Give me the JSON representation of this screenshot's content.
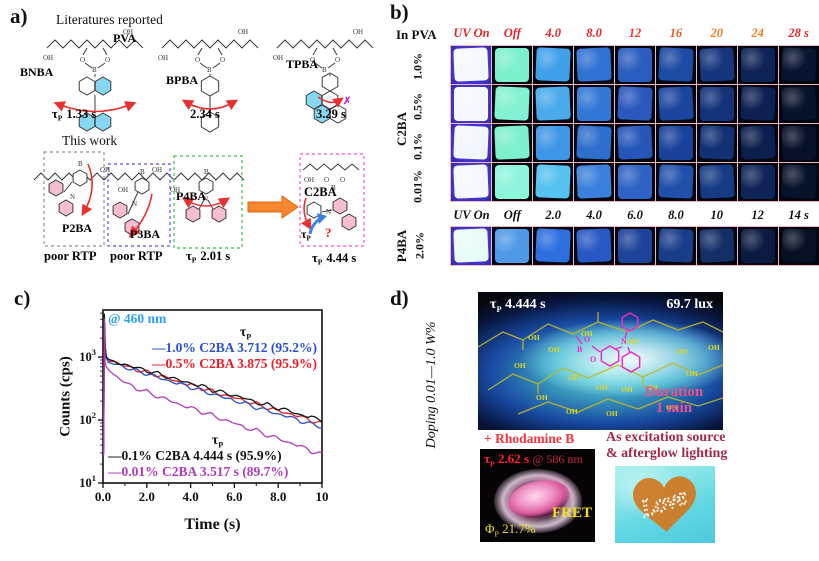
{
  "sym": {
    "tau": "τ",
    "P": "P",
    "phi": "Φ",
    "O": "O",
    "B": "B",
    "N": "N",
    "OH": "OH",
    "q": "?",
    "cross": "✗"
  },
  "panel_a": {
    "label": "a)",
    "literatures_title": "Literatures reported",
    "this_work_title": "This work",
    "pva": "PVA",
    "top_molecules": [
      {
        "name": "BNBA",
        "lifetime": "1.33 s"
      },
      {
        "name": "BPBA",
        "lifetime": "2.34 s"
      },
      {
        "name": "TPBA",
        "lifetime": "3.29 s"
      }
    ],
    "bottom_molecules": [
      {
        "name": "P2BA",
        "caption": "poor RTP"
      },
      {
        "name": "P3BA",
        "caption": "poor RTP"
      },
      {
        "name": "P4BA",
        "caption": "2.01 s"
      },
      {
        "name": "C2BA",
        "caption": "4.44 s"
      }
    ]
  },
  "panel_b": {
    "label": "b)",
    "matrix_label": "In PVA",
    "group1": "C2BA",
    "group2": "P4BA",
    "header1": [
      {
        "t": "UV On",
        "c": "#e8232b"
      },
      {
        "t": "Off",
        "c": "#e8232b"
      },
      {
        "t": "4.0",
        "c": "#e8232b"
      },
      {
        "t": "8.0",
        "c": "#e8232b"
      },
      {
        "t": "12",
        "c": "#ea392a"
      },
      {
        "t": "16",
        "c": "#ec5a26"
      },
      {
        "t": "20",
        "c": "#ef7d1d"
      },
      {
        "t": "24",
        "c": "#ef7d1d"
      },
      {
        "t": "28 s",
        "c": "#e8232b"
      }
    ],
    "header2": [
      "UV On",
      "Off",
      "2.0",
      "4.0",
      "6.0",
      "8.0",
      "10",
      "12",
      "14 s"
    ],
    "c2ba_rows": [
      {
        "label": "1.0%",
        "cells": [
          "#f5f9ff",
          "#7df0cd",
          "#41a0ea",
          "#2f72d4",
          "#2a5cc0",
          "#1d4aa2",
          "#15357c",
          "#0d2356",
          "#081430"
        ]
      },
      {
        "label": "0.5%",
        "cells": [
          "#f5f9ff",
          "#83f2d2",
          "#4aaaec",
          "#3276d6",
          "#2a58bc",
          "#1c469e",
          "#143278",
          "#0c2052",
          "#07122c"
        ]
      },
      {
        "label": "0.1%",
        "cells": [
          "#f2f7ff",
          "#7df0cd",
          "#3f96e6",
          "#2e6ecc",
          "#2656b8",
          "#1a429a",
          "#123074",
          "#0b1e4e",
          "#061028"
        ]
      },
      {
        "label": "0.01%",
        "cells": [
          "#f5f9ff",
          "#8df5dc",
          "#55c2f0",
          "#3a80dc",
          "#2e62c4",
          "#2050aa",
          "#163a84",
          "#0e2458",
          "#07122c"
        ]
      }
    ],
    "p4ba_row": {
      "label": "2.0%",
      "cells": [
        "#e9fdf8",
        "#4f9ae8",
        "#2e6fe0",
        "#2858c4",
        "#1d4498",
        "#1a3d8a",
        "#142e66",
        "#0a1a40",
        "#061025"
      ]
    }
  },
  "chart_data": {
    "type": "line",
    "y_scale": "log",
    "title": "",
    "xlabel": "Time (s)",
    "ylabel": "Counts (cps)",
    "xlim": [
      0,
      10
    ],
    "ylim": [
      10,
      5600
    ],
    "grid": false,
    "annotation": "@ 460 nm",
    "annotation_color": "#2ba2e8",
    "x_ticks": [
      "0.0",
      "2.0",
      "4.0",
      "6.0",
      "8.0",
      "10"
    ],
    "x_tick_values": [
      0,
      2,
      4,
      6,
      8,
      10
    ],
    "y_tick_values": [
      10,
      100,
      1000
    ],
    "y_tick_exponents": [
      "1",
      "2",
      "3"
    ],
    "legend_top": [
      {
        "label": "—1.0% C2BA 3.712 (95.2%)",
        "color": "#2b50cc"
      },
      {
        "label": "—0.5% C2BA 3.875 (95.9%)",
        "color": "#ee1c24"
      }
    ],
    "legend_bottom": [
      {
        "label": "—0.1% C2BA  4.444 s (95.9%)",
        "color": "#141414"
      },
      {
        "label": "—0.01% C2BA 3.517 s (89.7%)",
        "color": "#b13ab8"
      }
    ],
    "series": [
      {
        "name": "0.5% C2BA",
        "color": "#ee1c24",
        "points": [
          [
            0.03,
            32
          ],
          [
            0.06,
            4400
          ],
          [
            0.1,
            1350
          ],
          [
            0.15,
            980
          ],
          [
            0.25,
            858
          ],
          [
            0.5,
            818
          ],
          [
            1,
            743
          ],
          [
            1.5,
            616
          ],
          [
            2,
            594
          ],
          [
            2.5,
            494
          ],
          [
            3,
            476
          ],
          [
            3.5,
            383
          ],
          [
            4,
            373
          ],
          [
            4.5,
            310
          ],
          [
            5,
            298
          ],
          [
            5.5,
            240
          ],
          [
            6,
            234
          ],
          [
            6.5,
            194
          ],
          [
            7,
            187
          ],
          [
            7.5,
            151
          ],
          [
            8,
            147
          ],
          [
            8.5,
            121
          ],
          [
            9,
            118
          ],
          [
            9.5,
            95
          ],
          [
            10,
            92
          ]
        ]
      },
      {
        "name": "1.0% C2BA",
        "color": "#2b50cc",
        "points": [
          [
            0.03,
            30
          ],
          [
            0.06,
            4200
          ],
          [
            0.1,
            1300
          ],
          [
            0.15,
            960
          ],
          [
            0.25,
            828
          ],
          [
            0.5,
            795
          ],
          [
            1,
            676
          ],
          [
            1.5,
            629
          ],
          [
            2,
            524
          ],
          [
            2.5,
            497
          ],
          [
            3,
            406
          ],
          [
            3.5,
            386
          ],
          [
            4,
            322
          ],
          [
            4.5,
            306
          ],
          [
            5,
            250
          ],
          [
            5.5,
            237
          ],
          [
            6,
            197
          ],
          [
            6.5,
            189
          ],
          [
            7,
            152
          ],
          [
            7.5,
            147
          ],
          [
            8,
            120
          ],
          [
            8.5,
            116
          ],
          [
            9,
            94
          ],
          [
            9.5,
            90
          ],
          [
            10,
            75
          ]
        ]
      },
      {
        "name": "0.1% C2BA",
        "color": "#141414",
        "points": [
          [
            0.03,
            35
          ],
          [
            0.06,
            4800
          ],
          [
            0.1,
            1500
          ],
          [
            0.15,
            1020
          ],
          [
            0.25,
            920
          ],
          [
            0.5,
            873
          ],
          [
            1,
            734
          ],
          [
            1.5,
            702
          ],
          [
            2,
            591
          ],
          [
            2.5,
            565
          ],
          [
            3,
            462
          ],
          [
            3.5,
            442
          ],
          [
            4,
            372
          ],
          [
            4.5,
            359
          ],
          [
            5,
            290
          ],
          [
            5.5,
            283
          ],
          [
            6,
            236
          ],
          [
            6.5,
            228
          ],
          [
            7,
            184
          ],
          [
            7.5,
            180
          ],
          [
            8,
            148
          ],
          [
            8.5,
            146
          ],
          [
            9,
            117
          ],
          [
            9.5,
            116
          ],
          [
            10,
            93
          ]
        ]
      },
      {
        "name": "0.01% C2BA",
        "color": "#b13ab8",
        "points": [
          [
            0.03,
            28
          ],
          [
            0.06,
            4000
          ],
          [
            0.1,
            780
          ],
          [
            0.15,
            700
          ],
          [
            0.25,
            625
          ],
          [
            0.5,
            500
          ],
          [
            1,
            409
          ],
          [
            1.5,
            312
          ],
          [
            2,
            291
          ],
          [
            2.5,
            227
          ],
          [
            3,
            216
          ],
          [
            3.5,
            170
          ],
          [
            4,
            162
          ],
          [
            4.5,
            130
          ],
          [
            5,
            124
          ],
          [
            5.5,
            97
          ],
          [
            6,
            93
          ],
          [
            6.5,
            73
          ],
          [
            7,
            71
          ],
          [
            7.5,
            55
          ],
          [
            8,
            53
          ],
          [
            8.5,
            42
          ],
          [
            9,
            40
          ],
          [
            9.5,
            31
          ],
          [
            10,
            30
          ]
        ]
      }
    ]
  },
  "panel_d": {
    "label": "d)",
    "doping_label": "Doping 0.01—1.0 W%",
    "main_photo": {
      "tau_value": "4.444 s",
      "lux": "69.7 lux",
      "duration1": "Duration",
      "duration2": "1 min"
    },
    "rhodamine_caption": "+ Rhodamine B",
    "rb_photo": {
      "tau_value": "2.62 s",
      "wavelength": "@ 586 nm",
      "fret": "FRET",
      "phi_value": "21.7%"
    },
    "usage_caption1": "As excitation source",
    "usage_caption2": "& afterglow lighting",
    "heart_text": "Love"
  }
}
